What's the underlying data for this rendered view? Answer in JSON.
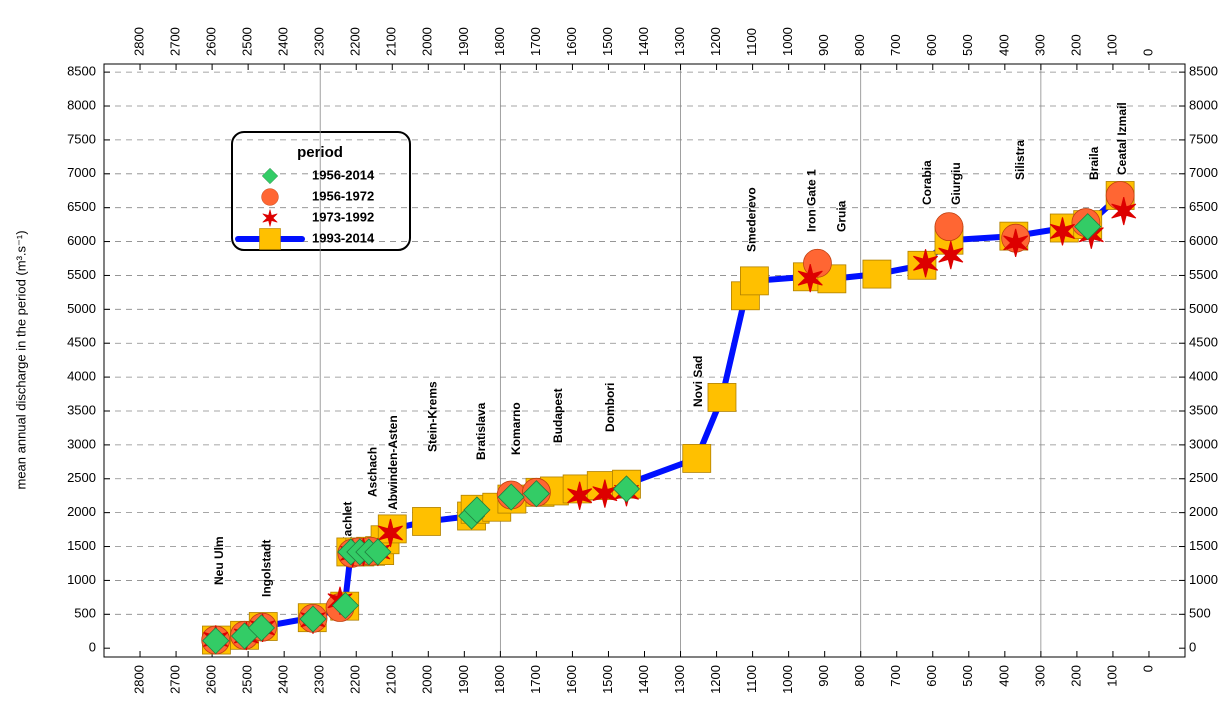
{
  "chart_data": {
    "type": "scatter",
    "y_label": "mean annual discharge in the period (m³.s⁻¹)",
    "legend_title": "period",
    "xlim": [
      2900,
      -100
    ],
    "ylim": [
      -130,
      8620
    ],
    "xticks": [
      2800,
      2700,
      2600,
      2500,
      2400,
      2300,
      2200,
      2100,
      2000,
      1900,
      1800,
      1700,
      1600,
      1500,
      1400,
      1300,
      1200,
      1100,
      1000,
      900,
      800,
      700,
      600,
      500,
      400,
      300,
      200,
      100,
      0
    ],
    "yticks": [
      0,
      500,
      1000,
      1500,
      2000,
      2500,
      3000,
      3500,
      4000,
      4500,
      5000,
      5500,
      6000,
      6500,
      7000,
      7500,
      8000,
      8500
    ],
    "grid": true,
    "annotations": [
      {
        "text": "Neu Ulm",
        "x": 2589
      },
      {
        "text": "Ingolstadt",
        "x": 2458
      },
      {
        "text": "Kachlet",
        "x": 2233
      },
      {
        "text": "Aschach",
        "x": 2163
      },
      {
        "text": "Abwinden-Asten",
        "x": 2107
      },
      {
        "text": "Stein-Krems",
        "x": 1997
      },
      {
        "text": "Bratislava",
        "x": 1863
      },
      {
        "text": "Komarno",
        "x": 1766
      },
      {
        "text": "Budapest",
        "x": 1649
      },
      {
        "text": "Dombori",
        "x": 1504
      },
      {
        "text": "Novi Sad",
        "x": 1260
      },
      {
        "text": "Smederevo",
        "x": 1112
      },
      {
        "text": "Iron Gate 1",
        "x": 945
      },
      {
        "text": "Gruia",
        "x": 862
      },
      {
        "text": "Corabia",
        "x": 625
      },
      {
        "text": "Giurgiu",
        "x": 545
      },
      {
        "text": "Silistra",
        "x": 367
      },
      {
        "text": "Braila",
        "x": 161
      },
      {
        "text": "Ceatal Izmail",
        "x": 83
      }
    ],
    "series": [
      {
        "name": "1993-2014",
        "marker": "square",
        "color": "#ffc000",
        "line_color": "#0010ff",
        "x": [
          2588,
          2510,
          2458,
          2322,
          2232,
          2215,
          2190,
          2160,
          2135,
          2120,
          2100,
          2005,
          1880,
          1870,
          1810,
          1768,
          1690,
          1650,
          1587,
          1520,
          1450,
          1255,
          1185,
          1120,
          1095,
          948,
          880,
          755,
          630,
          555,
          375,
          235,
          170,
          80
        ],
        "values": [
          120,
          190,
          320,
          450,
          620,
          1420,
          1420,
          1430,
          1440,
          1600,
          1760,
          1870,
          1950,
          2050,
          2080,
          2200,
          2300,
          2320,
          2350,
          2400,
          2420,
          2800,
          3700,
          5200,
          5420,
          5480,
          5450,
          5520,
          5650,
          6020,
          6080,
          6200,
          6250,
          6680
        ]
      },
      {
        "name": "1956-1972",
        "marker": "circle",
        "color": "#ff6633",
        "x": [
          2590,
          2510,
          2460,
          2320,
          2245,
          2212,
          2195,
          2160,
          1770,
          1700,
          920,
          555,
          370,
          175,
          80
        ],
        "values": [
          120,
          190,
          310,
          440,
          600,
          1400,
          1420,
          1430,
          2260,
          2300,
          5680,
          6220,
          6050,
          6280,
          6680
        ]
      },
      {
        "name": "1973-1992",
        "marker": "star",
        "color": "#dd0000",
        "x": [
          2590,
          2505,
          2460,
          2320,
          2245,
          2210,
          2180,
          2140,
          2105,
          1580,
          1510,
          1450,
          940,
          620,
          550,
          370,
          240,
          160,
          70
        ],
        "values": [
          130,
          180,
          300,
          420,
          700,
          1400,
          1420,
          1420,
          1700,
          2250,
          2280,
          2300,
          5460,
          5680,
          5800,
          5980,
          6150,
          6100,
          6450
        ]
      },
      {
        "name": "1956-2014",
        "marker": "diamond",
        "color": "#33cc66",
        "x": [
          2590,
          2510,
          2463,
          2320,
          2230,
          2215,
          2190,
          2165,
          2140,
          1880,
          1865,
          1770,
          1700,
          1450,
          170
        ],
        "values": [
          110,
          180,
          300,
          430,
          630,
          1420,
          1420,
          1420,
          1420,
          1950,
          2040,
          2230,
          2280,
          2350,
          6220
        ]
      }
    ],
    "legend_order": [
      3,
      1,
      2,
      0
    ]
  }
}
